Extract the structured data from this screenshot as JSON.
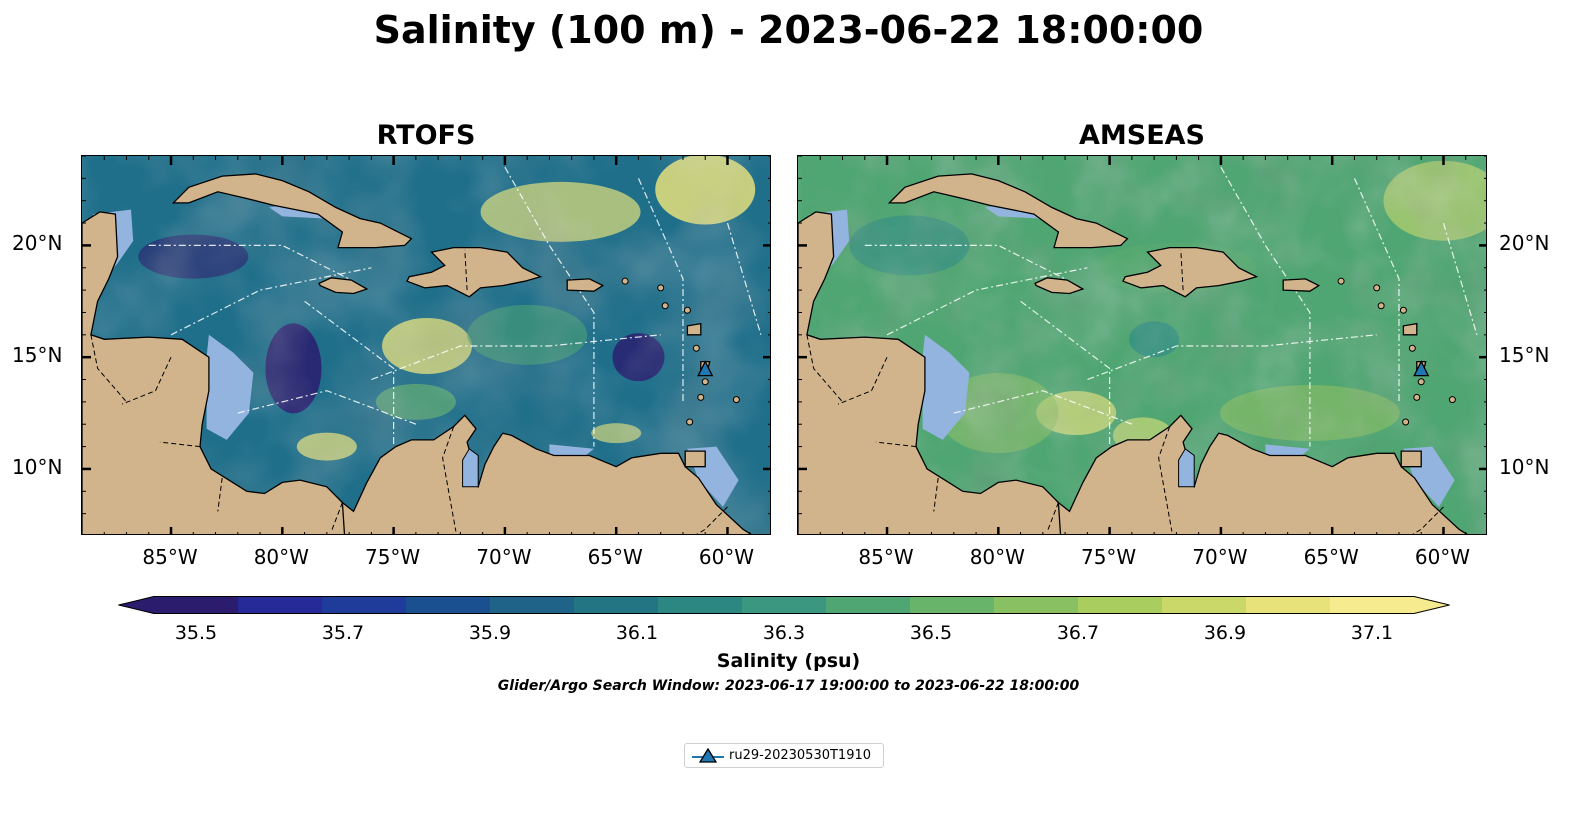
{
  "figure": {
    "title": "Salinity (100 m) - 2023-06-22 18:00:00",
    "window_text": "Glider/Argo Search Window: 2023-06-17 19:00:00 to 2023-06-22 18:00:00"
  },
  "panels": [
    {
      "title": "RTOFS",
      "palette": {
        "sea_base": "#1f6f8b",
        "fresh": "#2b1c6e",
        "salty": "#f2e97a"
      }
    },
    {
      "title": "AMSEAS",
      "palette": {
        "sea_base": "#4fa672",
        "fresh": "#23858a",
        "salty": "#e0e37a"
      }
    }
  ],
  "axes": {
    "x_ticks": [
      "85°W",
      "80°W",
      "75°W",
      "70°W",
      "65°W",
      "60°W"
    ],
    "y_ticks": [
      "20°N",
      "15°N",
      "10°N"
    ],
    "lon_range": [
      -89,
      -58
    ],
    "lat_range": [
      7,
      24
    ]
  },
  "colorbar": {
    "label": "Salinity (psu)",
    "ticks": [
      "35.5",
      "35.7",
      "35.9",
      "36.1",
      "36.3",
      "36.5",
      "36.7",
      "36.9",
      "37.1"
    ],
    "min": 35.5,
    "max": 37.1,
    "extend": "both",
    "colors": [
      "#2b1c6e",
      "#262a98",
      "#1f3c9a",
      "#1b5090",
      "#1f6388",
      "#247583",
      "#2c8682",
      "#3b977f",
      "#4fa672",
      "#69b46b",
      "#89c162",
      "#a9cd5e",
      "#cad86a",
      "#e8e27a",
      "#f6eb8e"
    ]
  },
  "legend": {
    "entries": [
      {
        "label": "ru29-20230530T1910",
        "marker": "triangle",
        "color": "#1f77b4"
      }
    ]
  },
  "colors": {
    "land": "#d2b48c",
    "shelf": "#94b4e0",
    "coast": "#000000",
    "grid": "#ffffff"
  },
  "glider": {
    "lon": -61.0,
    "lat": 14.4
  }
}
